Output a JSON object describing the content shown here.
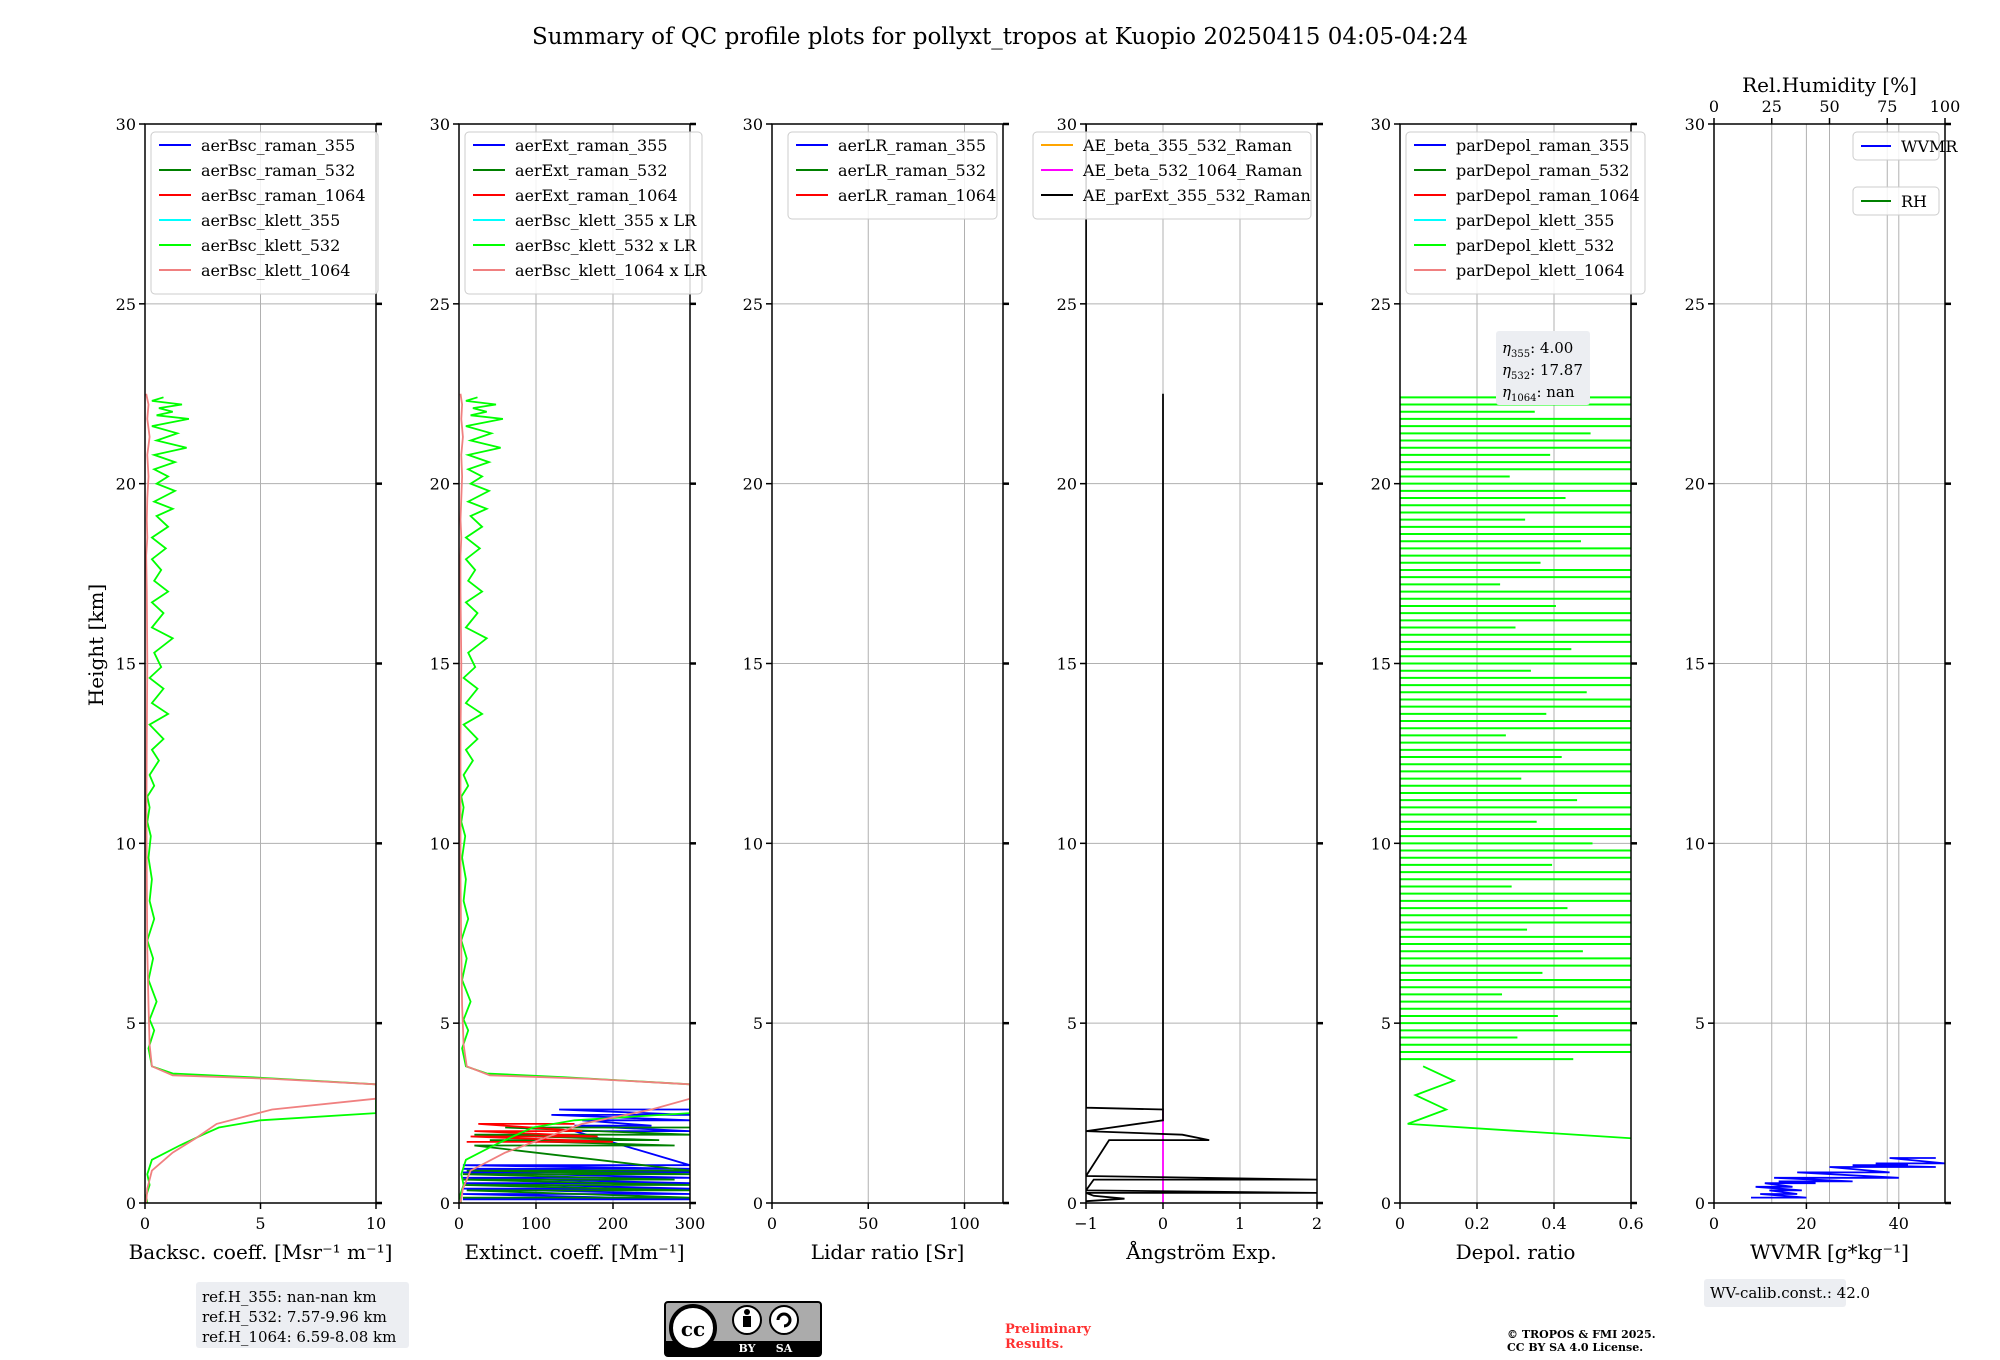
{
  "title": "Summary of QC profile plots for pollyxt_tropos at Kuopio 20250415 04:05-04:24",
  "height_label": "Height [km]",
  "height_ticks": [
    0,
    5,
    10,
    15,
    20,
    25,
    30
  ],
  "chart_data": [
    {
      "type": "line",
      "panel": "backscatter",
      "xlabel": "Backsc. coeff. [Msr⁻¹ m⁻¹]",
      "ylabel": "Height [km]",
      "xlim": [
        0,
        10
      ],
      "ylim": [
        0,
        30
      ],
      "xticks": [
        0,
        5,
        10
      ],
      "grid": true,
      "legend_position": "upper-left",
      "series": [
        {
          "name": "aerBsc_raman_355",
          "color": "#0000ff",
          "x": [],
          "y": []
        },
        {
          "name": "aerBsc_raman_532",
          "color": "#008000",
          "x": [],
          "y": []
        },
        {
          "name": "aerBsc_raman_1064",
          "color": "#ff0000",
          "x": [],
          "y": []
        },
        {
          "name": "aerBsc_klett_355",
          "color": "#00ffff",
          "x": [],
          "y": []
        },
        {
          "name": "aerBsc_klett_532",
          "color": "#00ff00",
          "x": [
            0.1,
            0.05,
            0.2,
            0.1,
            0.3,
            1.5,
            2.5,
            3.2,
            5,
            10,
            10,
            4.5,
            1.2,
            0.3,
            0.15,
            0.4,
            0.2,
            0.5,
            0.15,
            0.35,
            0.1,
            0.4,
            0.2,
            0.3,
            0.15,
            0.25,
            0.1,
            0.2,
            0.1,
            0.4,
            0.2,
            0.6,
            0.3,
            0.8,
            0.2,
            1.0,
            0.3,
            0.8,
            0.2,
            0.7,
            0.4,
            1.2,
            0.3,
            0.8,
            0.3,
            1.0,
            0.4,
            0.7,
            0.3,
            0.9,
            0.3,
            1.0,
            0.5,
            1.2,
            0.4,
            1.3,
            0.5,
            1.0,
            0.4,
            1.3,
            0.4,
            1.8,
            0.5,
            1.4,
            0.3,
            1.9,
            0.5,
            1.2,
            0.6,
            1.6,
            0.3,
            0.8
          ],
          "y": [
            0,
            0.2,
            0.5,
            0.8,
            1.2,
            1.6,
            1.9,
            2.1,
            2.3,
            2.5,
            3.3,
            3.5,
            3.6,
            3.8,
            4.3,
            4.8,
            5.1,
            5.6,
            6.2,
            6.8,
            7.3,
            7.9,
            8.4,
            9.0,
            9.6,
            10.2,
            10.6,
            11.0,
            11.3,
            11.6,
            11.9,
            12.3,
            12.6,
            12.9,
            13.3,
            13.6,
            13.9,
            14.3,
            14.6,
            14.9,
            15.3,
            15.7,
            16.0,
            16.4,
            16.7,
            17.0,
            17.3,
            17.6,
            17.9,
            18.2,
            18.5,
            18.8,
            19.1,
            19.3,
            19.5,
            19.8,
            20.0,
            20.2,
            20.4,
            20.6,
            20.8,
            21.0,
            21.2,
            21.4,
            21.6,
            21.8,
            21.9,
            22.0,
            22.1,
            22.2,
            22.3,
            22.4
          ]
        },
        {
          "name": "aerBsc_klett_1064",
          "color": "#f08080",
          "x": [
            0.05,
            0.1,
            0.3,
            1.2,
            2.2,
            3.1,
            5.5,
            10,
            10,
            5.5,
            1.2,
            0.3,
            0.2,
            0.15,
            0.1,
            0.08,
            0.06,
            0.08,
            0.1,
            0.08,
            0.05,
            0.1,
            0.08,
            0.1,
            0.15,
            0.1,
            0.2,
            0.1,
            0.15,
            0.05
          ],
          "y": [
            0,
            0.4,
            0.9,
            1.4,
            1.8,
            2.2,
            2.6,
            2.9,
            3.3,
            3.45,
            3.55,
            3.8,
            4.4,
            5.5,
            7.0,
            9.0,
            11.0,
            13.0,
            15.0,
            17.0,
            18.0,
            18.5,
            19.0,
            19.6,
            20.2,
            20.8,
            21.3,
            21.8,
            22.2,
            22.5
          ]
        }
      ]
    },
    {
      "type": "line",
      "panel": "extinction",
      "xlabel": "Extinct. coeff. [Mm⁻¹]",
      "ylabel": "",
      "xlim": [
        0,
        300
      ],
      "ylim": [
        0,
        30
      ],
      "xticks": [
        0,
        100,
        200,
        300
      ],
      "grid": true,
      "legend_position": "upper-left",
      "series": [
        {
          "name": "aerExt_raman_355",
          "color": "#0000ff",
          "x": [
            5,
            300,
            5,
            300,
            5,
            300,
            5,
            300,
            5,
            300,
            5,
            300,
            5,
            300,
            5,
            300,
            150,
            300,
            150,
            250,
            160,
            300,
            120,
            300,
            130,
            300
          ],
          "y": [
            0.1,
            0.1,
            0.25,
            0.25,
            0.4,
            0.4,
            0.55,
            0.55,
            0.7,
            0.7,
            0.85,
            0.85,
            0.95,
            0.95,
            1.05,
            1.05,
            2.0,
            2.0,
            2.15,
            2.15,
            2.3,
            2.3,
            2.45,
            2.45,
            2.6,
            2.6
          ]
        },
        {
          "name": "aerExt_raman_532",
          "color": "#008000",
          "x": [
            5,
            300,
            10,
            300,
            5,
            300,
            5,
            280,
            5,
            300,
            10,
            300,
            20,
            280,
            40,
            260,
            20,
            300,
            60,
            300
          ],
          "y": [
            0.15,
            0.15,
            0.35,
            0.35,
            0.5,
            0.5,
            0.65,
            0.65,
            0.8,
            0.8,
            0.9,
            0.9,
            1.6,
            1.6,
            1.75,
            1.75,
            1.9,
            1.9,
            2.1,
            2.1
          ]
        },
        {
          "name": "aerExt_raman_1064",
          "color": "#ff0000",
          "x": [
            10,
            200,
            15,
            180,
            20,
            160,
            25,
            150
          ],
          "y": [
            1.7,
            1.7,
            1.85,
            1.85,
            2.0,
            2.0,
            2.2,
            2.2
          ]
        },
        {
          "name": "aerBsc_klett_355 x LR",
          "color": "#00ffff",
          "x": [],
          "y": []
        },
        {
          "name": "aerBsc_klett_532 x LR",
          "color": "#00ff00",
          "x": [
            3,
            1,
            6,
            3,
            9,
            45,
            75,
            96,
            150,
            300,
            300,
            135,
            36,
            9,
            4,
            12,
            6,
            15,
            4,
            10,
            3,
            12,
            6,
            9,
            4,
            8,
            3,
            6,
            3,
            12,
            6,
            18,
            9,
            24,
            6,
            30,
            9,
            24,
            6,
            21,
            12,
            36,
            9,
            24,
            9,
            30,
            12,
            21,
            9,
            27,
            9,
            30,
            15,
            36,
            12,
            39,
            15,
            30,
            12,
            39,
            12,
            54,
            15,
            42,
            9,
            57,
            15,
            36,
            18,
            48,
            9,
            24
          ],
          "y": [
            0,
            0.2,
            0.5,
            0.8,
            1.2,
            1.6,
            1.9,
            2.1,
            2.3,
            2.5,
            3.3,
            3.5,
            3.6,
            3.8,
            4.3,
            4.8,
            5.1,
            5.6,
            6.2,
            6.8,
            7.3,
            7.9,
            8.4,
            9.0,
            9.6,
            10.2,
            10.6,
            11.0,
            11.3,
            11.6,
            11.9,
            12.3,
            12.6,
            12.9,
            13.3,
            13.6,
            13.9,
            14.3,
            14.6,
            14.9,
            15.3,
            15.7,
            16.0,
            16.4,
            16.7,
            17.0,
            17.3,
            17.6,
            17.9,
            18.2,
            18.5,
            18.8,
            19.1,
            19.3,
            19.5,
            19.8,
            20.0,
            20.2,
            20.4,
            20.6,
            20.8,
            21.0,
            21.2,
            21.4,
            21.6,
            21.8,
            21.9,
            22.0,
            22.1,
            22.2,
            22.3,
            22.4
          ]
        },
        {
          "name": "aerBsc_klett_1064 x LR",
          "color": "#f08080",
          "x": [
            2,
            5,
            15,
            60,
            110,
            160,
            250,
            300,
            300,
            170,
            40,
            10,
            6,
            4,
            3,
            2,
            2,
            2,
            3,
            2,
            2,
            3,
            2,
            3,
            4,
            3,
            5,
            3,
            4,
            2
          ],
          "y": [
            0,
            0.4,
            0.9,
            1.4,
            1.8,
            2.2,
            2.6,
            2.9,
            3.3,
            3.45,
            3.55,
            3.8,
            4.4,
            5.5,
            7.0,
            9.0,
            11.0,
            13.0,
            15.0,
            17.0,
            18.0,
            18.5,
            19.0,
            19.6,
            20.2,
            20.8,
            21.3,
            21.8,
            22.2,
            22.5
          ]
        }
      ]
    },
    {
      "type": "line",
      "panel": "lidar_ratio",
      "xlabel": "Lidar ratio [Sr]",
      "ylabel": "",
      "xlim": [
        0,
        120
      ],
      "ylim": [
        0,
        30
      ],
      "xticks": [
        0,
        50,
        100
      ],
      "grid": true,
      "legend_position": "upper-right",
      "series": [
        {
          "name": "aerLR_raman_355",
          "color": "#0000ff",
          "x": [],
          "y": []
        },
        {
          "name": "aerLR_raman_532",
          "color": "#008000",
          "x": [],
          "y": []
        },
        {
          "name": "aerLR_raman_1064",
          "color": "#ff0000",
          "x": [],
          "y": []
        }
      ]
    },
    {
      "type": "line",
      "panel": "angstrom",
      "xlabel": "Ångström Exp.",
      "ylabel": "",
      "xlim": [
        -1,
        2
      ],
      "ylim": [
        0,
        30
      ],
      "xticks": [
        -1,
        0,
        1,
        2
      ],
      "grid": true,
      "legend_position": "upper-right",
      "series": [
        {
          "name": "AE_beta_355_532_Raman",
          "color": "#ffa500",
          "x": [],
          "y": []
        },
        {
          "name": "AE_beta_532_1064_Raman",
          "color": "#ff00ff",
          "x": [
            0,
            0
          ],
          "y": [
            0,
            2.6
          ]
        },
        {
          "name": "AE_parExt_355_532_Raman",
          "color": "#000000",
          "x": [
            -1,
            -0.5,
            -0.9,
            -1,
            2,
            -1,
            -0.9,
            2,
            -1,
            -0.7,
            0.6,
            0.25,
            -1,
            0,
            0,
            -1,
            -1,
            -1,
            -1
          ],
          "y": [
            0.05,
            0.12,
            0.2,
            0.28,
            0.28,
            0.35,
            0.65,
            0.65,
            0.75,
            1.75,
            1.75,
            1.9,
            2.0,
            2.3,
            2.6,
            2.65,
            3.0,
            27.0,
            30.0
          ]
        },
        {
          "name": "",
          "color": "#000000",
          "x": [
            0,
            0
          ],
          "y": [
            2.6,
            22.5
          ]
        }
      ]
    },
    {
      "type": "line",
      "panel": "depolarization",
      "xlabel": "Depol. ratio",
      "ylabel": "",
      "xlim": [
        0,
        0.6
      ],
      "ylim": [
        0,
        30
      ],
      "xticks": [
        0.0,
        0.2,
        0.4,
        0.6
      ],
      "grid": true,
      "legend_position": "upper-left",
      "series": [
        {
          "name": "parDepol_raman_355",
          "color": "#0000ff",
          "x": [],
          "y": []
        },
        {
          "name": "parDepol_raman_532",
          "color": "#008000",
          "x": [],
          "y": []
        },
        {
          "name": "parDepol_raman_1064",
          "color": "#ff0000",
          "x": [],
          "y": []
        },
        {
          "name": "parDepol_klett_355",
          "color": "#00ffff",
          "x": [],
          "y": []
        },
        {
          "name": "parDepol_klett_532",
          "color": "#00ff00",
          "x": [],
          "y": []
        },
        {
          "name": "parDepol_klett_1064",
          "color": "#f08080",
          "x": [],
          "y": []
        }
      ]
    },
    {
      "type": "line",
      "panel": "water_vapor",
      "xlabel": "WVMR [g*kg⁻¹]",
      "top_xlabel": "Rel.Humidity [%]",
      "ylabel": "",
      "xlim": [
        0,
        50
      ],
      "ylim": [
        0,
        30
      ],
      "xticks": [
        0,
        20,
        40
      ],
      "top_xlim": [
        0,
        100
      ],
      "top_xticks": [
        0,
        25,
        50,
        75,
        100
      ],
      "grid": true,
      "legend_position": "upper-right",
      "series": [
        {
          "name": "WVMR",
          "color": "#0000ff",
          "x": [
            8,
            20,
            10,
            18,
            12,
            19,
            9,
            17,
            11,
            22,
            14,
            30,
            13,
            40,
            18,
            38,
            25,
            48,
            30,
            42,
            35,
            50,
            38,
            48
          ],
          "y": [
            0.15,
            0.15,
            0.25,
            0.25,
            0.35,
            0.35,
            0.45,
            0.45,
            0.55,
            0.55,
            0.6,
            0.6,
            0.7,
            0.7,
            0.85,
            0.85,
            1.0,
            1.0,
            1.05,
            1.05,
            1.1,
            1.1,
            1.25,
            1.25
          ]
        },
        {
          "name": "RH",
          "color": "#008000",
          "x": [],
          "y": []
        }
      ]
    }
  ],
  "eta_box": {
    "line1_sym": "η",
    "line1_sub": "355",
    "line1_val": ": 4.00",
    "line2_sym": "η",
    "line2_sub": "532",
    "line2_val": ": 17.87",
    "line3_sym": "η",
    "line3_sub": "1064",
    "line3_val": ": nan"
  },
  "ref_box": {
    "line1": "ref.H_355: nan-nan km",
    "line2": "ref.H_532: 7.57-9.96 km",
    "line3": "ref.H_1064: 6.59-8.08 km"
  },
  "wv_calib": "WV-calib.const.: 42.0",
  "license_badge": {
    "cc": "cc",
    "by": "BY",
    "sa": "SA"
  },
  "preliminary": {
    "line1": "Preliminary",
    "line2": "Results."
  },
  "copyright": {
    "line1": "© TROPOS & FMI 2025.",
    "line2": "CC BY SA 4.0 License."
  },
  "colors": {
    "grid": "#b0b0b0",
    "legend_border": "#cccccc",
    "info_box": "#eceef2"
  }
}
